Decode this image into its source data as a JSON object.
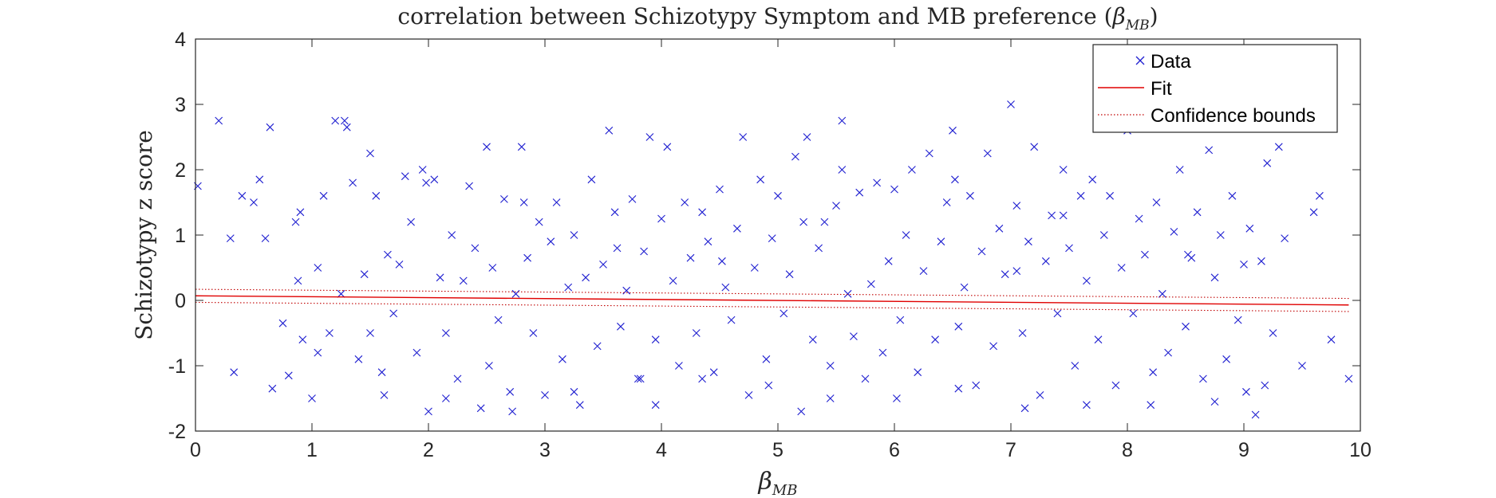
{
  "chart_data": {
    "type": "scatter",
    "title": {
      "prefix": "correlation between Schizotypy Symptom and MB preference (",
      "symbol": "β",
      "subscript": "MB",
      "suffix": ")"
    },
    "xlabel": {
      "symbol": "β",
      "subscript": "MB"
    },
    "ylabel": "Schizotypy z score",
    "xlim": [
      0,
      10
    ],
    "ylim": [
      -2,
      4
    ],
    "xticks": [
      "0",
      "1",
      "2",
      "3",
      "4",
      "5",
      "6",
      "7",
      "8",
      "9",
      "10"
    ],
    "yticks": [
      "-2",
      "-1",
      "0",
      "1",
      "2",
      "3",
      "4"
    ],
    "grid": false,
    "legend": {
      "placement": "top-right",
      "entries": [
        "Data",
        "Fit",
        "Confidence bounds"
      ]
    },
    "colors": {
      "data": "#1f1fd0",
      "fit": "#e00000",
      "bounds": "#c00000"
    },
    "series": [
      {
        "name": "Data",
        "marker": "x",
        "x": [
          0.02,
          0.2,
          0.3,
          0.33,
          0.4,
          0.5,
          0.55,
          0.6,
          0.64,
          0.66,
          0.75,
          0.8,
          0.86,
          0.9,
          0.92,
          1.0,
          1.05,
          1.1,
          1.15,
          1.2,
          1.25,
          1.3,
          1.35,
          1.4,
          1.45,
          1.5,
          1.55,
          1.6,
          1.65,
          1.7,
          1.75,
          1.8,
          1.85,
          1.9,
          1.95,
          2.0,
          2.05,
          2.1,
          2.15,
          2.2,
          2.25,
          2.3,
          2.35,
          2.4,
          2.45,
          2.5,
          2.55,
          2.6,
          2.65,
          2.7,
          2.75,
          2.8,
          2.85,
          2.9,
          2.95,
          3.0,
          3.05,
          3.1,
          3.15,
          3.2,
          3.25,
          3.3,
          3.35,
          3.4,
          3.45,
          3.5,
          3.55,
          3.6,
          3.65,
          3.7,
          3.75,
          3.8,
          3.85,
          3.9,
          3.95,
          4.0,
          4.05,
          4.1,
          4.15,
          4.2,
          4.25,
          4.3,
          4.35,
          4.4,
          4.45,
          4.5,
          4.55,
          4.6,
          4.65,
          4.7,
          4.75,
          4.8,
          4.85,
          4.9,
          4.95,
          5.0,
          5.05,
          5.1,
          5.15,
          5.2,
          5.25,
          5.3,
          5.35,
          5.4,
          5.45,
          5.5,
          5.55,
          5.6,
          5.65,
          5.7,
          5.75,
          5.8,
          5.85,
          5.9,
          5.95,
          6.0,
          6.05,
          6.1,
          6.15,
          6.2,
          6.25,
          6.3,
          6.35,
          6.4,
          6.45,
          6.5,
          6.55,
          6.6,
          6.65,
          6.7,
          6.75,
          6.8,
          6.85,
          6.9,
          6.95,
          7.0,
          7.05,
          7.1,
          7.15,
          7.2,
          7.25,
          7.3,
          7.35,
          7.4,
          7.45,
          7.5,
          7.55,
          7.6,
          7.65,
          7.7,
          7.75,
          7.8,
          7.85,
          7.9,
          7.95,
          8.0,
          8.05,
          8.1,
          8.15,
          8.2,
          8.25,
          8.3,
          8.35,
          8.4,
          8.45,
          8.5,
          8.55,
          8.6,
          8.65,
          8.7,
          8.75,
          8.8,
          8.85,
          8.9,
          8.95,
          9.0,
          9.05,
          9.1,
          9.15,
          9.2,
          9.25,
          9.3,
          9.35,
          9.5,
          9.6,
          9.65,
          9.75,
          9.9,
          0.88,
          1.28,
          1.5,
          1.98,
          2.52,
          2.82,
          3.62,
          3.95,
          4.52,
          5.22,
          5.55,
          6.52,
          7.05,
          7.45,
          8.52,
          9.18,
          1.05,
          2.15,
          3.25,
          4.35,
          5.45,
          6.55,
          7.65,
          8.75,
          1.62,
          2.72,
          3.82,
          4.92,
          6.02,
          7.12,
          8.22,
          9.02
        ],
        "y": [
          1.75,
          2.75,
          0.95,
          -1.1,
          1.6,
          1.5,
          1.85,
          0.95,
          2.65,
          -1.35,
          -0.35,
          -1.15,
          1.2,
          1.35,
          -0.6,
          -1.5,
          0.5,
          1.6,
          -0.5,
          2.75,
          0.1,
          2.65,
          1.8,
          -0.9,
          0.4,
          2.25,
          1.6,
          -1.1,
          0.7,
          -0.2,
          0.55,
          1.9,
          1.2,
          -0.8,
          2.0,
          -1.7,
          1.85,
          0.35,
          -0.5,
          1.0,
          -1.2,
          0.3,
          1.75,
          0.8,
          -1.65,
          2.35,
          0.5,
          -0.3,
          1.55,
          -1.4,
          0.1,
          2.35,
          0.65,
          -0.5,
          1.2,
          -1.45,
          0.9,
          1.5,
          -0.9,
          0.2,
          1.0,
          -1.6,
          0.35,
          1.85,
          -0.7,
          0.55,
          2.6,
          1.35,
          -0.4,
          0.15,
          1.55,
          -1.2,
          0.75,
          2.5,
          -0.6,
          1.25,
          2.35,
          0.3,
          -1.0,
          1.5,
          0.65,
          -0.5,
          1.35,
          0.9,
          -1.1,
          1.7,
          0.2,
          -0.3,
          1.1,
          2.5,
          -1.45,
          0.5,
          1.85,
          -0.9,
          0.95,
          1.6,
          -0.2,
          0.4,
          2.2,
          -1.7,
          2.5,
          -0.6,
          0.8,
          1.2,
          -1.0,
          1.45,
          2.75,
          0.1,
          -0.55,
          1.65,
          -1.2,
          0.25,
          1.8,
          -0.8,
          0.6,
          1.7,
          -0.3,
          1.0,
          2.0,
          -1.1,
          0.45,
          2.25,
          -0.6,
          0.9,
          1.5,
          2.6,
          -0.4,
          0.2,
          1.6,
          -1.3,
          0.75,
          2.25,
          -0.7,
          1.1,
          0.4,
          3.0,
          1.45,
          -0.5,
          0.9,
          2.35,
          -1.45,
          0.6,
          1.3,
          -0.2,
          2.0,
          0.8,
          -1.0,
          1.6,
          0.3,
          1.85,
          -0.6,
          1.0,
          1.6,
          -1.3,
          0.5,
          2.6,
          -0.2,
          1.25,
          0.7,
          -1.6,
          1.5,
          0.1,
          -0.8,
          1.05,
          2.0,
          -0.4,
          0.65,
          1.35,
          -1.2,
          2.3,
          0.35,
          1.0,
          -0.9,
          1.6,
          -0.3,
          0.55,
          1.1,
          -1.75,
          0.6,
          2.1,
          -0.5,
          2.35,
          0.95,
          -1.0,
          1.35,
          1.6,
          -0.6,
          -1.2,
          0.3,
          2.75,
          -0.5,
          1.8,
          -1.0,
          1.5,
          0.8,
          -1.6,
          0.6,
          1.2,
          2.0,
          1.85,
          0.45,
          1.3,
          0.7,
          -1.3,
          -0.8,
          -1.5,
          -1.4,
          -1.2,
          -1.5,
          -1.35,
          -1.6,
          -1.55,
          -1.45,
          -1.7,
          -1.2,
          -1.3,
          -1.5,
          -1.65,
          -1.1,
          -1.4
        ]
      },
      {
        "name": "Fit",
        "x": [
          0,
          9.9
        ],
        "y": [
          0.07,
          -0.07
        ]
      },
      {
        "name": "Confidence bounds",
        "x": [
          0,
          9.9
        ],
        "y_upper": [
          0.17,
          0.03
        ],
        "y_lower": [
          -0.03,
          -0.17
        ]
      }
    ]
  }
}
